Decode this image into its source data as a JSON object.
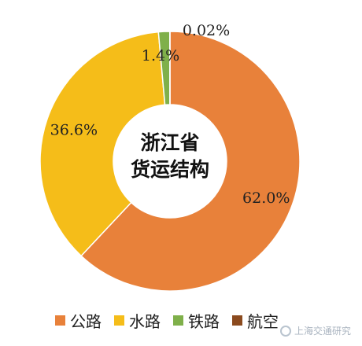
{
  "chart_data": {
    "type": "pie",
    "style": "donut",
    "center_label": [
      "浙江省",
      "货运结构"
    ],
    "categories": [
      "公路",
      "水路",
      "铁路",
      "航空"
    ],
    "values": [
      62.0,
      36.6,
      1.4,
      0.02
    ],
    "value_labels": [
      "62.0%",
      "36.6%",
      "1.4%",
      "0.02%"
    ],
    "colors": [
      "#e8813a",
      "#f5bd19",
      "#7fb04a",
      "#8b4a1e"
    ],
    "legend_position": "bottom"
  },
  "watermark": {
    "text": "上海交通研究"
  }
}
